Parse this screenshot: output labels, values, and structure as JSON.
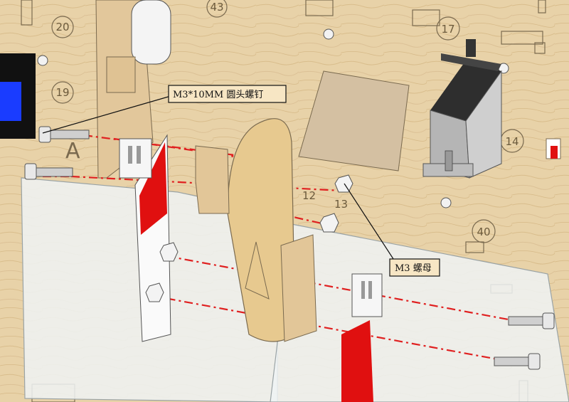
{
  "callouts": {
    "screw": "M3*10MM 圆头螺钉",
    "nut": "M3 螺母"
  },
  "board_labels": {
    "n20": "20",
    "n43": "43",
    "n19": "19",
    "n17": "17",
    "n14": "14",
    "n12": "12",
    "n13": "13",
    "n40": "40",
    "letter_a": "A"
  },
  "colors": {
    "wood": "#e8d2a8",
    "red_part": "#e01010",
    "assembly_line": "#e02020",
    "acrylic": "#eef3f4",
    "screen": "#1a3cff"
  }
}
